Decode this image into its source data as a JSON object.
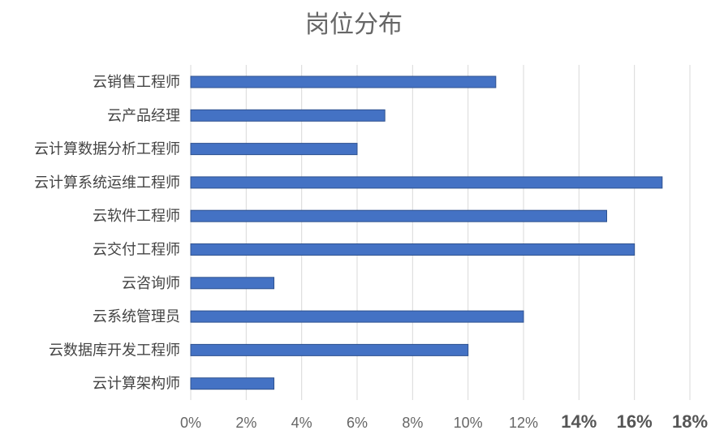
{
  "chart_data": {
    "type": "bar",
    "orientation": "horizontal",
    "title": "岗位分布",
    "xlabel": "",
    "ylabel": "",
    "categories": [
      "云销售工程师",
      "云产品经理",
      "云计算数据分析工程师",
      "云计算系统运维工程师",
      "云软件工程师",
      "云交付工程师",
      "云咨询师",
      "云系统管理员",
      "云数据库开发工程师",
      "云计算架构师"
    ],
    "values": [
      11,
      7,
      6,
      17,
      15,
      16,
      3,
      12,
      10,
      3
    ],
    "unit": "%",
    "xlim": [
      0,
      18
    ],
    "xticks": [
      "0%",
      "2%",
      "4%",
      "6%",
      "8%",
      "10%",
      "12%",
      "14%",
      "16%",
      "18%"
    ],
    "grid": true,
    "legend": "none",
    "colors": {
      "bar": "#4472c4",
      "bar_border": "#2f528f",
      "grid": "#d9d9d9"
    }
  }
}
